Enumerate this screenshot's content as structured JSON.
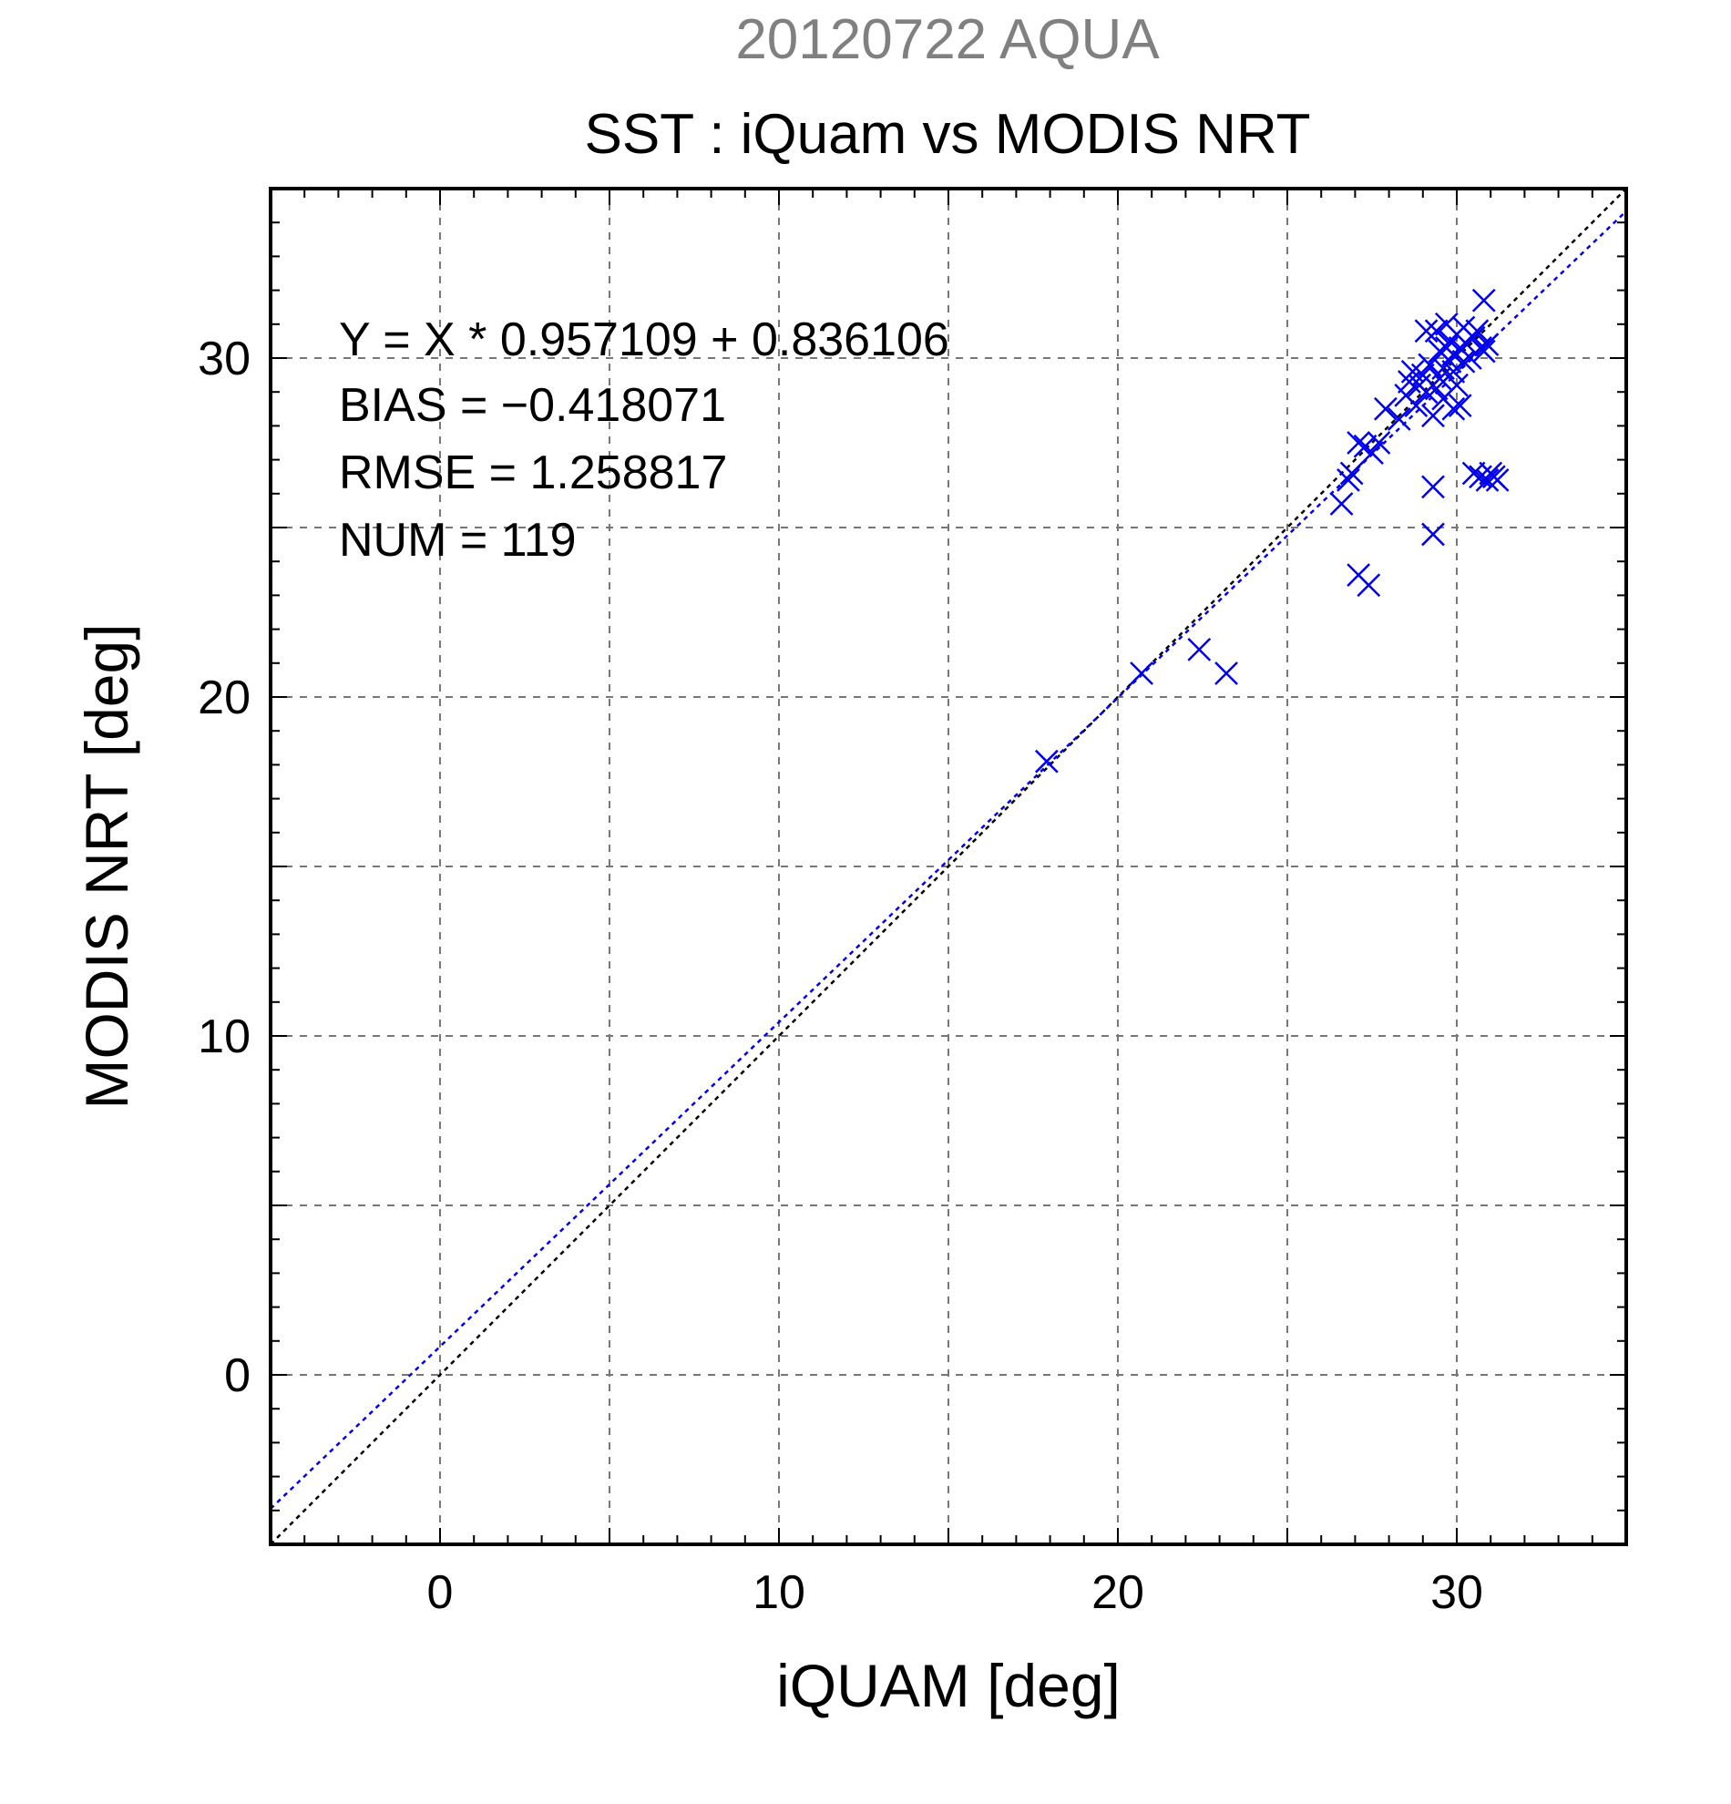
{
  "figure": {
    "date_title": "20120722 AQUA",
    "title": "SST : iQuam vs MODIS NRT"
  },
  "stats": {
    "regression": "Y = X * 0.957109 + 0.836106",
    "bias": "BIAS = −0.418071",
    "rmse": "RMSE = 1.258817",
    "num": "NUM = 119"
  },
  "chart_data": {
    "type": "scatter",
    "title": "SST : iQuam vs MODIS NRT",
    "subtitle": "20120722 AQUA",
    "xlabel": "iQUAM [deg]",
    "ylabel": "MODIS NRT [deg]",
    "xlim": [
      -5,
      35
    ],
    "ylim": [
      -5,
      35
    ],
    "xticks": [
      0,
      10,
      20,
      30
    ],
    "yticks": [
      0,
      10,
      20,
      30
    ],
    "grid": true,
    "marker": "x",
    "colors": {
      "points": "#0000ee",
      "fit_line": "#0000ee",
      "identity_line": "#000000",
      "date_title": "#808080"
    },
    "lines": [
      {
        "kind": "identity",
        "slope": 1.0,
        "intercept": 0.0
      },
      {
        "kind": "fit",
        "slope": 0.957109,
        "intercept": 0.836106
      }
    ],
    "series": [
      {
        "values": [
          [
            17.9,
            18.1
          ],
          [
            20.7,
            20.7
          ],
          [
            22.4,
            21.4
          ],
          [
            23.2,
            20.7
          ],
          [
            26.6,
            25.7
          ],
          [
            26.8,
            26.4
          ],
          [
            26.9,
            26.6
          ],
          [
            27.1,
            23.6
          ],
          [
            27.4,
            23.3
          ],
          [
            27.1,
            27.5
          ],
          [
            27.3,
            27.4
          ],
          [
            27.5,
            27.2
          ],
          [
            27.7,
            27.5
          ],
          [
            27.9,
            28.5
          ],
          [
            28.3,
            28.2
          ],
          [
            28.5,
            28.9
          ],
          [
            28.6,
            29.3
          ],
          [
            28.7,
            29.6
          ],
          [
            28.8,
            28.6
          ],
          [
            28.9,
            29.2
          ],
          [
            29.0,
            29.5
          ],
          [
            29.1,
            29.0
          ],
          [
            29.1,
            30.8
          ],
          [
            29.2,
            29.8
          ],
          [
            29.3,
            26.2
          ],
          [
            29.3,
            24.8
          ],
          [
            29.3,
            28.3
          ],
          [
            29.4,
            29.1
          ],
          [
            29.4,
            30.8
          ],
          [
            29.5,
            29.4
          ],
          [
            29.5,
            30.2
          ],
          [
            29.6,
            29.7
          ],
          [
            29.6,
            28.8
          ],
          [
            29.7,
            30.3
          ],
          [
            29.7,
            31.0
          ],
          [
            29.8,
            29.9
          ],
          [
            29.8,
            30.5
          ],
          [
            29.9,
            28.5
          ],
          [
            29.9,
            29.6
          ],
          [
            29.9,
            30.1
          ],
          [
            30.0,
            30.7
          ],
          [
            30.0,
            29.2
          ],
          [
            30.1,
            30.3
          ],
          [
            30.1,
            28.6
          ],
          [
            30.2,
            29.9
          ],
          [
            30.2,
            30.9
          ],
          [
            30.3,
            30.4
          ],
          [
            30.4,
            30.0
          ],
          [
            30.5,
            30.6
          ],
          [
            30.5,
            26.6
          ],
          [
            30.6,
            30.8
          ],
          [
            30.7,
            30.3
          ],
          [
            30.7,
            26.5
          ],
          [
            30.8,
            31.7
          ],
          [
            30.8,
            30.2
          ],
          [
            30.9,
            30.4
          ],
          [
            30.9,
            26.4
          ],
          [
            31.0,
            26.6
          ],
          [
            31.1,
            26.5
          ],
          [
            31.2,
            26.4
          ]
        ]
      }
    ]
  }
}
